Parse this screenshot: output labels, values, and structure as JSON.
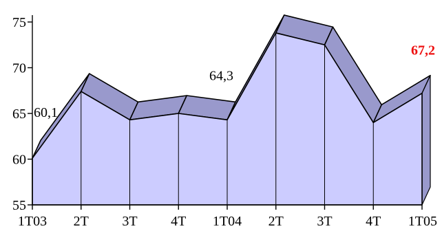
{
  "chart_data": {
    "type": "area",
    "categories": [
      "1T03",
      "2T",
      "3T",
      "4T",
      "1T04",
      "2T",
      "3T",
      "4T",
      "1T05"
    ],
    "series": [
      {
        "values": [
          60.1,
          67.4,
          64.3,
          65.0,
          64.3,
          73.8,
          72.5,
          64.0,
          67.2
        ]
      }
    ],
    "ylim": [
      55,
      76
    ],
    "yticks": [
      55,
      60,
      65,
      70,
      75
    ],
    "style": "3d-area",
    "annotations": [
      {
        "index": 0,
        "text": "60,1",
        "highlight": false
      },
      {
        "index": 4,
        "text": "64,3",
        "highlight": false
      },
      {
        "index": 8,
        "text": "67,2",
        "highlight": true
      }
    ],
    "colors": {
      "front": "#ccccff",
      "top": "#9999cc",
      "line": "#000000",
      "highlight": "#ee1111"
    }
  }
}
